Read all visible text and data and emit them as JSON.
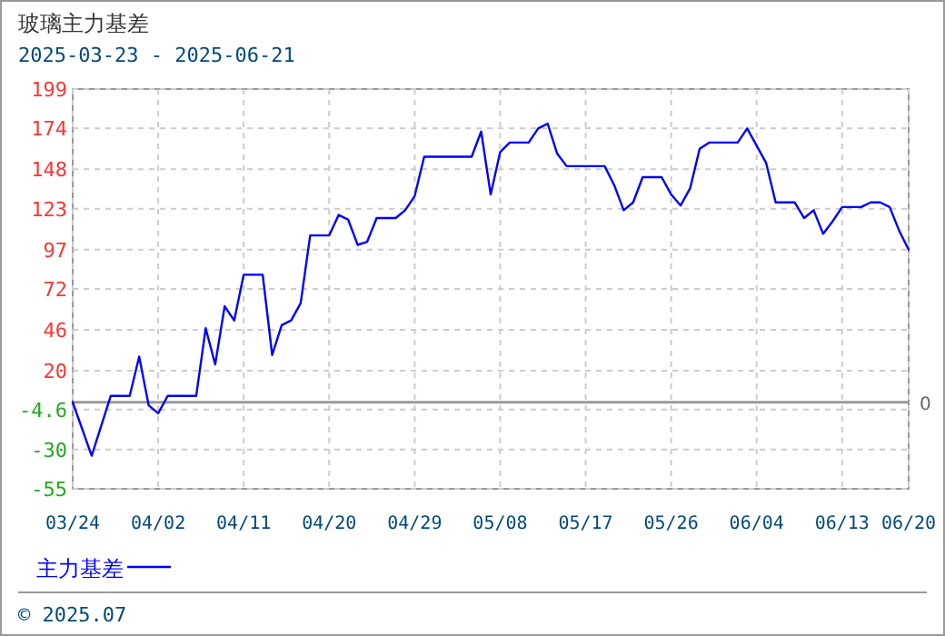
{
  "chart_data": {
    "type": "line",
    "title": "玻璃主力基差",
    "subtitle": "2025-03-23 - 2025-06-21",
    "x": [
      "2025-03-24",
      "2025-03-26",
      "2025-03-28",
      "2025-03-30",
      "2025-03-31",
      "2025-04-01",
      "2025-04-02",
      "2025-04-03",
      "2025-04-06",
      "2025-04-07",
      "2025-04-08",
      "2025-04-09",
      "2025-04-10",
      "2025-04-11",
      "2025-04-13",
      "2025-04-14",
      "2025-04-15",
      "2025-04-16",
      "2025-04-17",
      "2025-04-18",
      "2025-04-20",
      "2025-04-21",
      "2025-04-22",
      "2025-04-23",
      "2025-04-24",
      "2025-04-25",
      "2025-04-27",
      "2025-04-28",
      "2025-04-29",
      "2025-04-30",
      "2025-05-05",
      "2025-05-06",
      "2025-05-07",
      "2025-05-08",
      "2025-05-09",
      "2025-05-11",
      "2025-05-12",
      "2025-05-13",
      "2025-05-14",
      "2025-05-15",
      "2025-05-19",
      "2025-05-20",
      "2025-05-21",
      "2025-05-22",
      "2025-05-23",
      "2025-05-25",
      "2025-05-26",
      "2025-05-27",
      "2025-05-28",
      "2025-05-29",
      "2025-05-30",
      "2025-06-02",
      "2025-06-03",
      "2025-06-04",
      "2025-06-05",
      "2025-06-06",
      "2025-06-08",
      "2025-06-09",
      "2025-06-10",
      "2025-06-11",
      "2025-06-12",
      "2025-06-13",
      "2025-06-15",
      "2025-06-16",
      "2025-06-17",
      "2025-06-18",
      "2025-06-19",
      "2025-06-20"
    ],
    "series": [
      {
        "name": "主力基差",
        "color": "#0000ff",
        "values": [
          0,
          -34,
          4,
          4,
          29,
          -2,
          -7,
          4,
          4,
          47,
          24,
          61,
          52,
          81,
          81,
          30,
          49,
          52,
          63,
          106,
          106,
          119,
          116,
          100,
          102,
          117,
          117,
          122,
          131,
          156,
          156,
          172,
          132,
          159,
          165,
          165,
          174,
          177,
          158,
          150,
          150,
          138,
          122,
          127,
          143,
          143,
          132,
          125,
          136,
          161,
          165,
          165,
          174,
          163,
          152,
          127,
          127,
          117,
          122,
          107,
          115,
          124,
          124,
          127,
          127,
          124,
          109,
          97
        ]
      }
    ],
    "xlim": [
      "2025-03-24",
      "2025-06-20"
    ],
    "xticks": [
      {
        "value": "2025-03-24",
        "label": "03/24"
      },
      {
        "value": "2025-04-02",
        "label": "04/02"
      },
      {
        "value": "2025-04-11",
        "label": "04/11"
      },
      {
        "value": "2025-04-20",
        "label": "04/20"
      },
      {
        "value": "2025-04-29",
        "label": "04/29"
      },
      {
        "value": "2025-05-08",
        "label": "05/08"
      },
      {
        "value": "2025-05-17",
        "label": "05/17"
      },
      {
        "value": "2025-05-26",
        "label": "05/26"
      },
      {
        "value": "2025-06-04",
        "label": "06/04"
      },
      {
        "value": "2025-06-13",
        "label": "06/13"
      },
      {
        "value": "2025-06-20",
        "label": "06/20"
      }
    ],
    "ylim": [
      -55,
      199
    ],
    "yticks": [
      199,
      174,
      148,
      123,
      97,
      72,
      46,
      20,
      -4.6,
      -30,
      -55
    ],
    "ref_lines": [
      {
        "axis": "y",
        "value": 0,
        "label": "0",
        "color": "#999999"
      }
    ],
    "grid": true,
    "legend": "bottom",
    "marker": "none",
    "line_style": "solid",
    "annotations": [
      "© 2025.07"
    ]
  }
}
